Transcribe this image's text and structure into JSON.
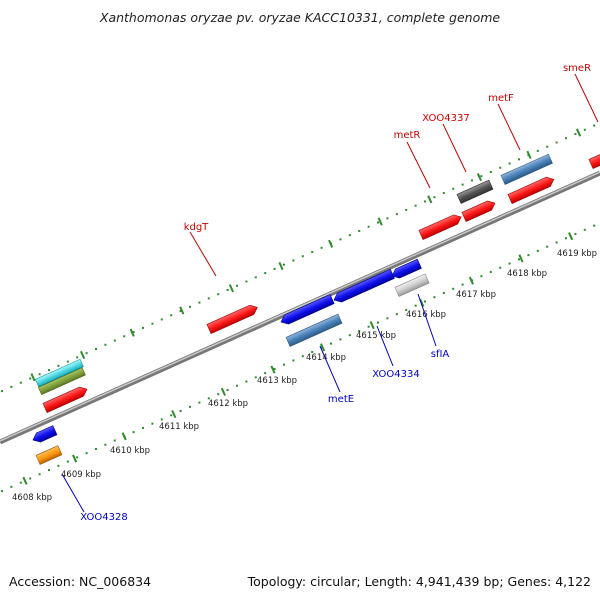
{
  "title": "Xanthomonas oryzae pv. oryzae KACC10331, complete genome",
  "footer": {
    "accession": "Accession: NC_006834",
    "topology": "Topology: circular; Length: 4,941,439 bp; Genes: 4,122"
  },
  "colors": {
    "forward_label": "#cc0000",
    "reverse_label": "#0000cc",
    "tick": "#2e8b2e",
    "backbone": "#888888"
  },
  "kbp_labels": [
    "4608 kbp",
    "4609 kbp",
    "4610 kbp",
    "4611 kbp",
    "4612 kbp",
    "4613 kbp",
    "4614 kbp",
    "4615 kbp",
    "4616 kbp",
    "4617 kbp",
    "4618 kbp",
    "4619 kbp"
  ],
  "gene_labels": {
    "forward": [
      "kdgT",
      "metR",
      "XOO4337",
      "metF",
      "smeR"
    ],
    "reverse": [
      "XOO4328",
      "metE",
      "XOO4334",
      "sfIA"
    ]
  },
  "legend_note": ""
}
